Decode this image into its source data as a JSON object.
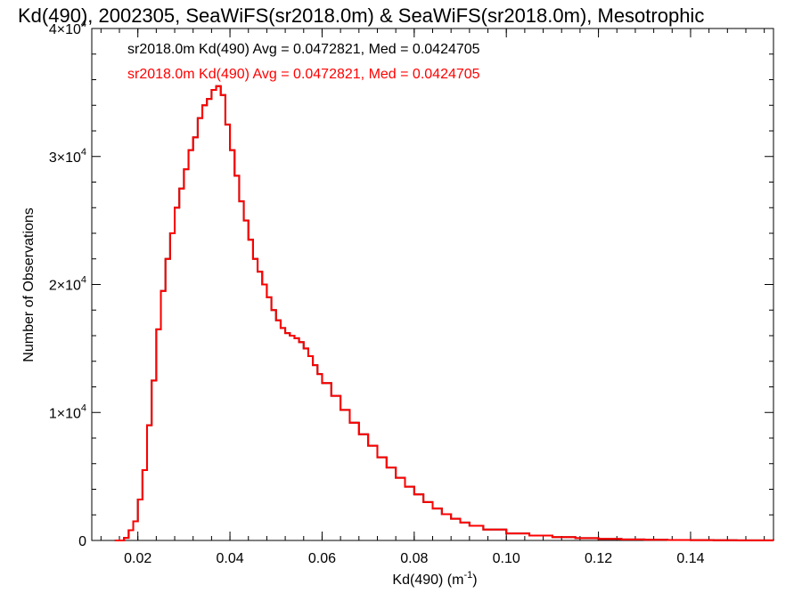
{
  "chart_data": {
    "type": "histogram",
    "title": "Kd(490), 2002305, SeaWiFS(sr2018.0m) & SeaWiFS(sr2018.0m), Mesotrophic",
    "xlabel": "Kd(490) (m",
    "xlabel_sup": "-1",
    "xlabel_close": ")",
    "ylabel": "Number of Observations",
    "xlim": [
      0.01,
      0.158
    ],
    "ylim": [
      0,
      40000
    ],
    "x_ticks": [
      {
        "value": 0.02,
        "label": "0.02"
      },
      {
        "value": 0.04,
        "label": "0.04"
      },
      {
        "value": 0.06,
        "label": "0.06"
      },
      {
        "value": 0.08,
        "label": "0.08"
      },
      {
        "value": 0.1,
        "label": "0.10"
      },
      {
        "value": 0.12,
        "label": "0.12"
      },
      {
        "value": 0.14,
        "label": "0.14"
      }
    ],
    "y_ticks": [
      {
        "value": 0,
        "mantissa": "0",
        "exp": ""
      },
      {
        "value": 10000,
        "mantissa": "1×10",
        "exp": "4"
      },
      {
        "value": 20000,
        "mantissa": "2×10",
        "exp": "4"
      },
      {
        "value": 30000,
        "mantissa": "3×10",
        "exp": "4"
      },
      {
        "value": 40000,
        "mantissa": "4×10",
        "exp": "4"
      }
    ],
    "series": [
      {
        "name": "sr2018.0m Kd(490) Avg = 0.0472821, Med = 0.0424705",
        "color": "#000000",
        "x": [
          0.015,
          0.016,
          0.017,
          0.018,
          0.019,
          0.02,
          0.021,
          0.022,
          0.023,
          0.024,
          0.025,
          0.026,
          0.027,
          0.028,
          0.029,
          0.03,
          0.031,
          0.032,
          0.033,
          0.034,
          0.035,
          0.036,
          0.037,
          0.038,
          0.039,
          0.04,
          0.041,
          0.042,
          0.043,
          0.044,
          0.045,
          0.046,
          0.047,
          0.048,
          0.049,
          0.05,
          0.051,
          0.052,
          0.053,
          0.054,
          0.055,
          0.056,
          0.057,
          0.058,
          0.059,
          0.06,
          0.062,
          0.064,
          0.066,
          0.068,
          0.07,
          0.072,
          0.074,
          0.076,
          0.078,
          0.08,
          0.082,
          0.084,
          0.086,
          0.088,
          0.09,
          0.092,
          0.095,
          0.1,
          0.105,
          0.11,
          0.115,
          0.12,
          0.125,
          0.13,
          0.135,
          0.14,
          0.145,
          0.15,
          0.158
        ],
        "values": [
          0,
          0,
          200,
          800,
          1500,
          3200,
          5500,
          9000,
          12500,
          16500,
          19500,
          22000,
          24000,
          26000,
          27500,
          29000,
          30500,
          31500,
          33000,
          34000,
          34500,
          35200,
          35500,
          34800,
          32500,
          30500,
          28500,
          26500,
          25000,
          23500,
          22000,
          21000,
          20000,
          19000,
          18000,
          17200,
          16600,
          16200,
          16000,
          15800,
          15500,
          15000,
          14400,
          13700,
          13000,
          12300,
          11300,
          10200,
          9200,
          8300,
          7400,
          6500,
          5700,
          4900,
          4200,
          3600,
          3000,
          2500,
          2050,
          1700,
          1400,
          1150,
          850,
          550,
          380,
          260,
          180,
          120,
          80,
          55,
          35,
          22,
          14,
          8,
          4
        ]
      },
      {
        "name": "sr2018.0m Kd(490) Avg = 0.0472821, Med = 0.0424705",
        "color": "#ff0000",
        "x": [
          0.015,
          0.016,
          0.017,
          0.018,
          0.019,
          0.02,
          0.021,
          0.022,
          0.023,
          0.024,
          0.025,
          0.026,
          0.027,
          0.028,
          0.029,
          0.03,
          0.031,
          0.032,
          0.033,
          0.034,
          0.035,
          0.036,
          0.037,
          0.038,
          0.039,
          0.04,
          0.041,
          0.042,
          0.043,
          0.044,
          0.045,
          0.046,
          0.047,
          0.048,
          0.049,
          0.05,
          0.051,
          0.052,
          0.053,
          0.054,
          0.055,
          0.056,
          0.057,
          0.058,
          0.059,
          0.06,
          0.062,
          0.064,
          0.066,
          0.068,
          0.07,
          0.072,
          0.074,
          0.076,
          0.078,
          0.08,
          0.082,
          0.084,
          0.086,
          0.088,
          0.09,
          0.092,
          0.095,
          0.1,
          0.105,
          0.11,
          0.115,
          0.12,
          0.125,
          0.13,
          0.135,
          0.14,
          0.145,
          0.15,
          0.158
        ],
        "values": [
          0,
          0,
          200,
          800,
          1500,
          3200,
          5500,
          9000,
          12500,
          16500,
          19500,
          22000,
          24000,
          26000,
          27500,
          29000,
          30500,
          31500,
          33000,
          34000,
          34500,
          35200,
          35500,
          34800,
          32500,
          30500,
          28500,
          26500,
          25000,
          23500,
          22000,
          21000,
          20000,
          19000,
          18000,
          17200,
          16600,
          16200,
          16000,
          15800,
          15500,
          15000,
          14400,
          13700,
          13000,
          12300,
          11300,
          10200,
          9200,
          8300,
          7400,
          6500,
          5700,
          4900,
          4200,
          3600,
          3000,
          2500,
          2050,
          1700,
          1400,
          1150,
          850,
          550,
          380,
          260,
          180,
          120,
          80,
          55,
          35,
          22,
          14,
          8,
          4
        ]
      }
    ],
    "legend_placement": "top-left",
    "grid": false
  }
}
